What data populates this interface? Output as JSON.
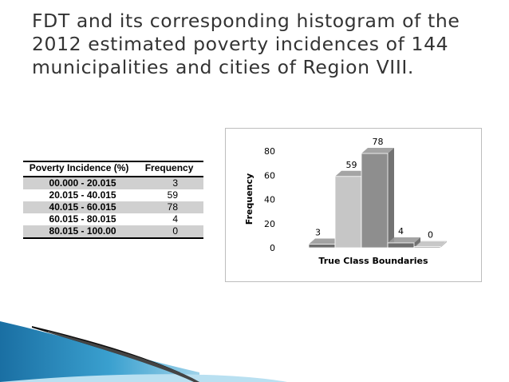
{
  "slide": {
    "title_lines": [
      "FDT and its corresponding histogram of the",
      "2012 estimated poverty incidences of 144",
      "municipalities and cities of Region VIII."
    ]
  },
  "table": {
    "headers": [
      "Poverty Incidence (%)",
      "Frequency"
    ],
    "rows": [
      {
        "interval": "00.000 -  20.015",
        "frequency": "3"
      },
      {
        "interval": "20.015 - 40.015",
        "frequency": "59"
      },
      {
        "interval": "40.015 - 60.015",
        "frequency": "78"
      },
      {
        "interval": "60.015 - 80.015",
        "frequency": "4"
      },
      {
        "interval": "80.015 - 100.00",
        "frequency": "0"
      }
    ]
  },
  "chart_data": {
    "type": "bar",
    "style": "3d-histogram",
    "categories": [
      "00.000 - 20.015",
      "20.015 - 40.015",
      "40.015 - 60.015",
      "60.015 - 80.015",
      "80.015 - 100.00"
    ],
    "values": [
      3,
      59,
      78,
      4,
      0
    ],
    "data_labels": [
      "3",
      "59",
      "78",
      "4",
      "0"
    ],
    "title": "",
    "xlabel": "True Class Boundaries",
    "ylabel": "Frequency",
    "ylim": [
      0,
      80
    ],
    "yticks": [
      "0",
      "20",
      "40",
      "60",
      "80"
    ],
    "grid": false,
    "legend": "none",
    "colors": {
      "bar_dark": "#6e6e6e",
      "bar_light": "#c6c6c6",
      "bar_mid": "#8e8e8e",
      "floor": "#e6e6e6"
    }
  }
}
